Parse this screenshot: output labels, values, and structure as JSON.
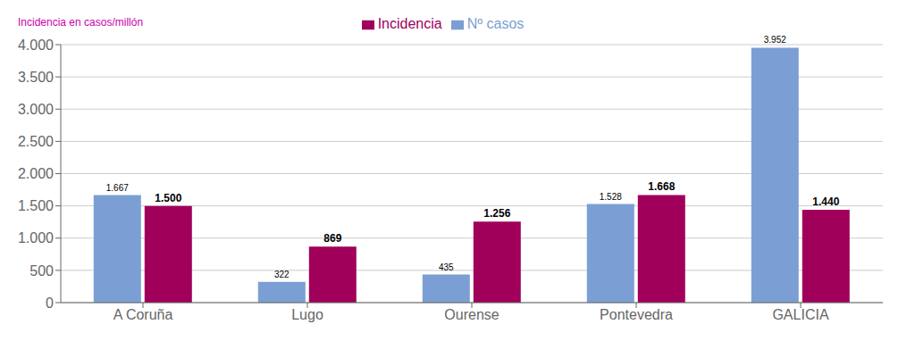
{
  "chart_data": {
    "type": "bar",
    "categories": [
      "A Coruña",
      "Lugo",
      "Ourense",
      "Pontevedra",
      "GALICIA"
    ],
    "series": [
      {
        "name": "Nº casos",
        "color": "#7B9FD4",
        "values": [
          1667,
          322,
          435,
          1528,
          3952
        ],
        "value_labels": [
          "1.667",
          "322",
          "435",
          "1.528",
          "3.952"
        ]
      },
      {
        "name": "Incidencia",
        "color": "#A0005A",
        "values": [
          1500,
          869,
          1256,
          1668,
          1440
        ],
        "value_labels": [
          "1.500",
          "869",
          "1.256",
          "1.668",
          "1.440"
        ]
      }
    ],
    "ylabel": "Incidencia en casos/millón",
    "ylim": [
      0,
      4000
    ],
    "yticks": [
      0,
      500,
      {
        "value": 1000,
        "label": "1.000"
      },
      {
        "value": 1500,
        "label": "1.500"
      },
      {
        "value": 2000,
        "label": "2.000"
      },
      {
        "value": 2500,
        "label": "2.500"
      },
      {
        "value": 3000,
        "label": "3.000"
      },
      {
        "value": 3500,
        "label": "3.500"
      },
      {
        "value": 4000,
        "label": "4.000"
      }
    ],
    "grid": true,
    "legend": "top",
    "data_labels": true
  }
}
